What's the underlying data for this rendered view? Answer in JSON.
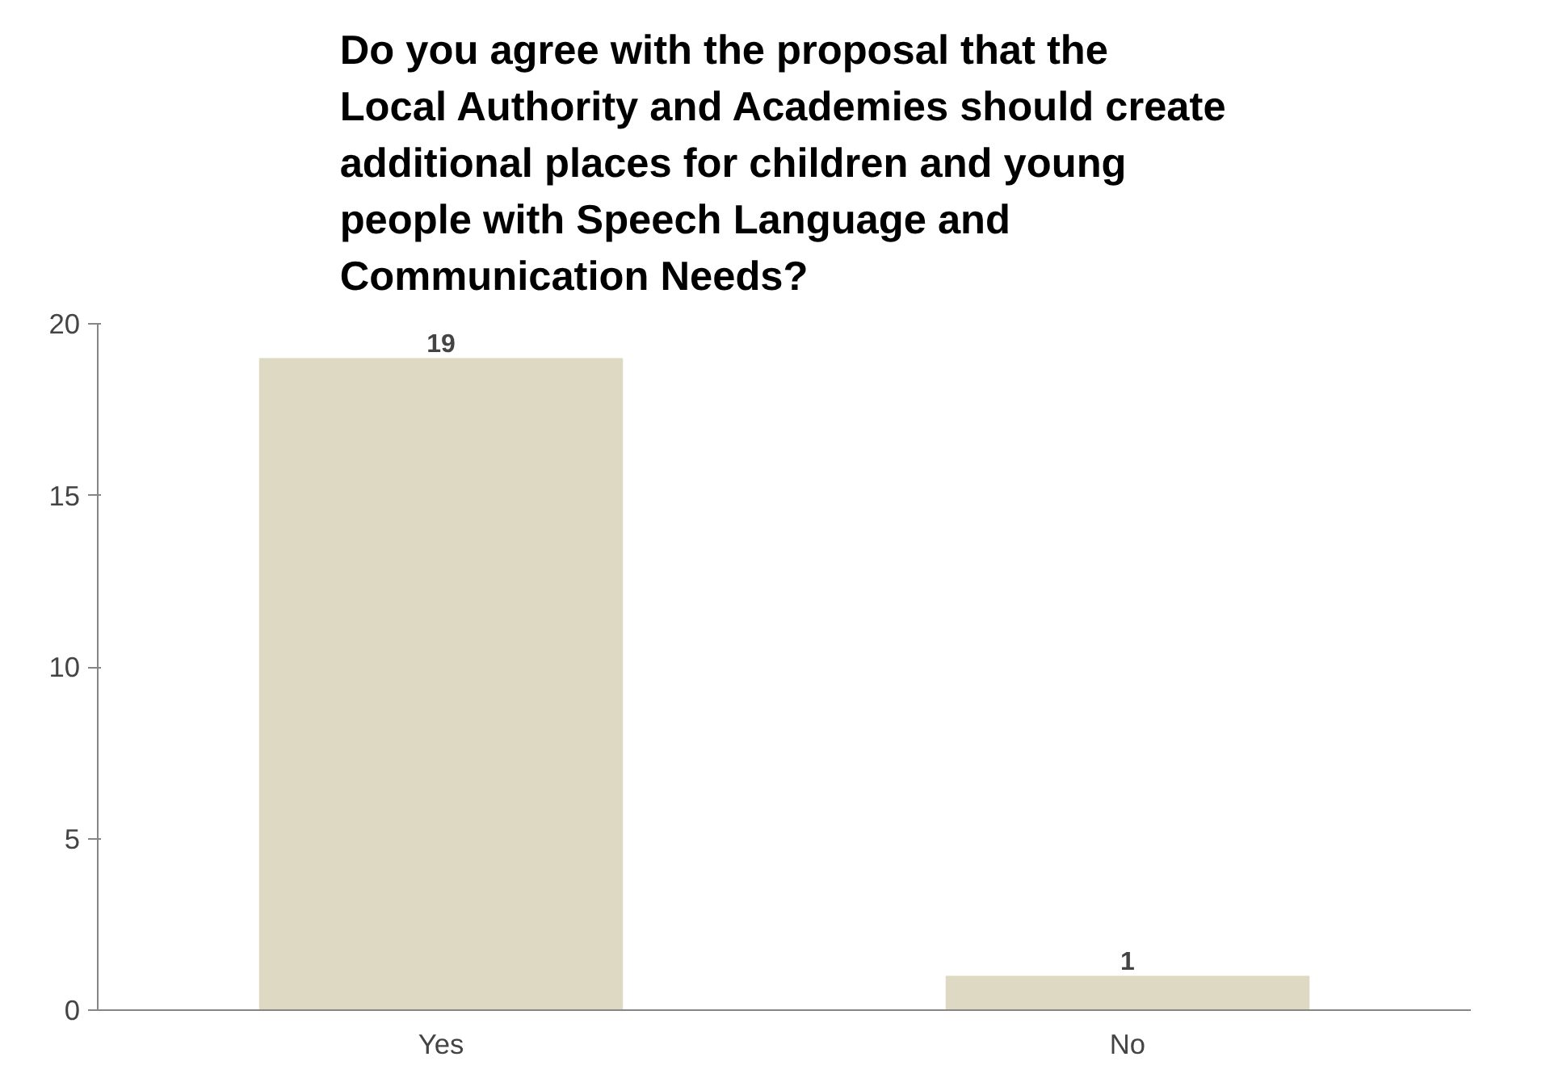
{
  "chart_data": {
    "type": "bar",
    "title": "Do you agree with the proposal that the Local Authority and Academies should create additional places for children and young people with Speech Language and Communication Needs?",
    "categories": [
      "Yes",
      "No"
    ],
    "values": [
      19,
      1
    ],
    "color": "#ddd9c3",
    "ylim": [
      0,
      20
    ],
    "yticks": [
      0,
      5,
      10,
      15,
      20
    ],
    "grid": false,
    "data_labels": true
  }
}
